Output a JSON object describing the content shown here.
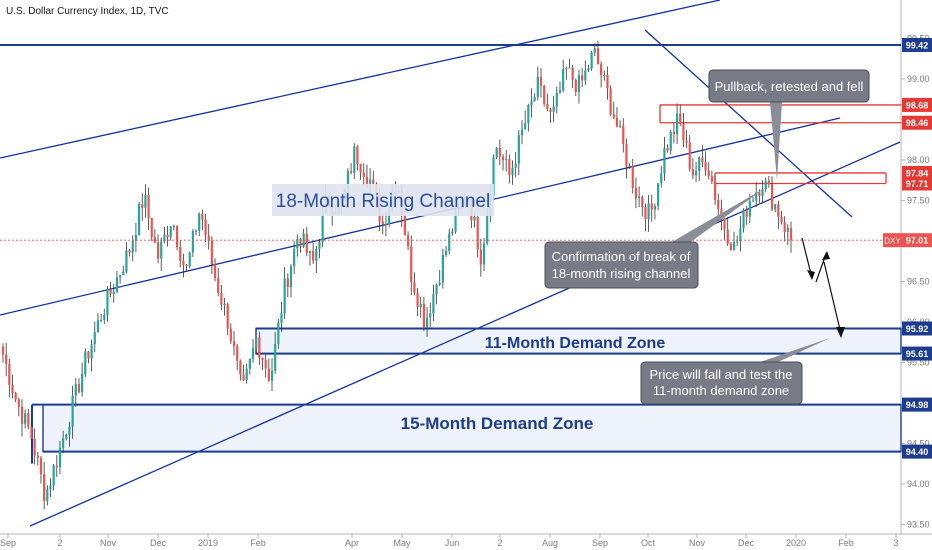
{
  "header": {
    "title": "U.S. Dollar Currency Index, 1D, TVC"
  },
  "colors": {
    "up": "#26a69a",
    "down": "#ef5350",
    "wick": "#333333",
    "channel": "#1432a0",
    "level": "#1e3c8c",
    "red_level": "#e53935",
    "current": "#ef5350",
    "callout": "#787b86"
  },
  "chart_data": {
    "type": "candlestick",
    "ylim": [
      93.5,
      99.7
    ],
    "y_ticks": [
      "93.50",
      "94.00",
      "94.50",
      "95.00",
      "95.50",
      "96.00",
      "96.50",
      "97.00",
      "97.50",
      "98.00",
      "98.50",
      "99.00",
      "99.50"
    ],
    "x_ticks": [
      "Sep",
      "2",
      "Nov",
      "Dec",
      "2019",
      "Feb",
      "Apr",
      "May",
      "Jun",
      "2",
      "Aug",
      "Sep",
      "Oct",
      "Nov",
      "Dec",
      "2020",
      "Feb",
      "3"
    ],
    "levels": [
      {
        "value": 99.42,
        "label": "99.42",
        "kind": "blue"
      },
      {
        "value": 98.68,
        "label": "98.68",
        "kind": "red"
      },
      {
        "value": 98.46,
        "label": "98.46",
        "kind": "red"
      },
      {
        "value": 97.84,
        "label": "97.84",
        "kind": "red"
      },
      {
        "value": 97.71,
        "label": "97.71",
        "kind": "red"
      },
      {
        "value": 95.92,
        "label": "95.92",
        "kind": "blue"
      },
      {
        "value": 95.61,
        "label": "95.61",
        "kind": "blue"
      },
      {
        "value": 94.98,
        "label": "94.98",
        "kind": "blue"
      },
      {
        "value": 94.4,
        "label": "94.40",
        "kind": "blue"
      }
    ],
    "current_price": {
      "symbol": "DXY",
      "value": 97.01,
      "label": "97.01"
    },
    "zones": [
      {
        "name": "11-Month Demand Zone",
        "low": 95.61,
        "high": 95.92
      },
      {
        "name": "15-Month Demand Zone",
        "low": 94.4,
        "high": 94.98
      }
    ],
    "series": [
      {
        "segment": "Sep-Nov",
        "path": [
          95.6,
          95.0,
          94.6,
          93.85,
          94.4,
          95.0,
          95.6,
          96.1,
          96.5,
          96.9,
          97.55
        ]
      },
      {
        "segment": "Nov-Jan",
        "path": [
          97.55,
          96.8,
          97.3,
          96.6,
          97.4,
          96.6,
          96.0,
          95.1,
          95.8
        ]
      },
      {
        "segment": "Jan-May",
        "path": [
          95.8,
          95.3,
          96.4,
          97.1,
          96.7,
          97.5,
          97.4,
          98.1,
          97.8
        ]
      },
      {
        "segment": "May-Aug",
        "path": [
          97.8,
          97.2,
          97.8,
          96.6,
          96.0,
          96.6,
          97.2,
          97.6,
          96.8,
          98.2
        ]
      },
      {
        "segment": "Aug-Oct",
        "path": [
          98.2,
          97.8,
          98.4,
          98.9,
          98.5,
          99.1,
          98.9,
          99.33,
          98.8,
          98.2,
          97.6
        ]
      },
      {
        "segment": "Oct-Dec",
        "path": [
          97.6,
          97.3,
          98.1,
          98.5,
          97.85,
          98.0,
          97.3,
          96.9,
          97.5,
          97.75,
          97.4,
          97.01
        ]
      }
    ]
  },
  "annotations": {
    "channel_label": "18-Month Rising Channel",
    "pullback": "Pullback, retested and fell",
    "confirmation_line1": "Confirmation of break of",
    "confirmation_line2": "18-month rising channel",
    "demand_11": "11-Month Demand Zone",
    "demand_15": "15-Month Demand Zone",
    "price_fall_line1": "Price will fall and test the",
    "price_fall_line2": "11-month demand zone"
  }
}
